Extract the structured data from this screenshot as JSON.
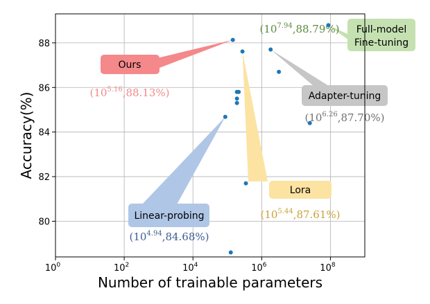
{
  "chart_data": {
    "type": "scatter",
    "xlabel": "Number of trainable parameters",
    "ylabel": "Accuracy(%)",
    "x_scale": "log10",
    "xlim_log10": [
      0,
      9
    ],
    "ylim": [
      78.4,
      89.3
    ],
    "x_ticks_log10": [
      0,
      2,
      4,
      6,
      8
    ],
    "x_tick_base": "10",
    "y_ticks": [
      80,
      82,
      84,
      86,
      88
    ],
    "grid": true,
    "point_color": "#1f77b4",
    "points": [
      {
        "x_log10": 5.16,
        "y": 88.13
      },
      {
        "x_log10": 5.44,
        "y": 87.61
      },
      {
        "x_log10": 6.26,
        "y": 87.7
      },
      {
        "x_log10": 6.5,
        "y": 86.7
      },
      {
        "x_log10": 7.4,
        "y": 84.4
      },
      {
        "x_log10": 7.94,
        "y": 88.79
      },
      {
        "x_log10": 4.94,
        "y": 84.68
      },
      {
        "x_log10": 5.28,
        "y": 85.8
      },
      {
        "x_log10": 5.33,
        "y": 85.8
      },
      {
        "x_log10": 5.28,
        "y": 85.5
      },
      {
        "x_log10": 5.28,
        "y": 85.3
      },
      {
        "x_log10": 5.54,
        "y": 81.7
      },
      {
        "x_log10": 5.1,
        "y": 78.6
      }
    ],
    "callouts": [
      {
        "label": "Ours",
        "annotation_base": "10",
        "annotation_exp": "5.16",
        "annotation_rest": ",88.13%)",
        "color": "#f4888a",
        "text_color": "#ef8a8a",
        "target": {
          "x_log10": 5.16,
          "y": 88.13
        }
      },
      {
        "label": "Lora",
        "annotation_base": "10",
        "annotation_exp": "5.44",
        "annotation_rest": ",87.61%)",
        "color": "#fce3a2",
        "text_color": "#c9a23a",
        "target": {
          "x_log10": 5.44,
          "y": 87.61
        }
      },
      {
        "label": "Adapter-tuning",
        "annotation_base": "10",
        "annotation_exp": "6.26",
        "annotation_rest": ",87.70%)",
        "color": "#c6c6c6",
        "text_color": "#707070",
        "target": {
          "x_log10": 6.26,
          "y": 87.7
        }
      },
      {
        "label": "Linear-probing",
        "annotation_base": "10",
        "annotation_exp": "4.94",
        "annotation_rest": ",84.68%)",
        "color": "#afc6e6",
        "text_color": "#3d5d92",
        "target": {
          "x_log10": 4.94,
          "y": 84.68
        }
      },
      {
        "label": "Full-model",
        "label2": "Fine-tuning",
        "annotation_base": "10",
        "annotation_exp": "7.94",
        "annotation_rest": ",88.79%)",
        "color": "#c5e1b2",
        "text_color": "#5b8a3e",
        "target": {
          "x_log10": 7.94,
          "y": 88.79
        }
      }
    ]
  }
}
